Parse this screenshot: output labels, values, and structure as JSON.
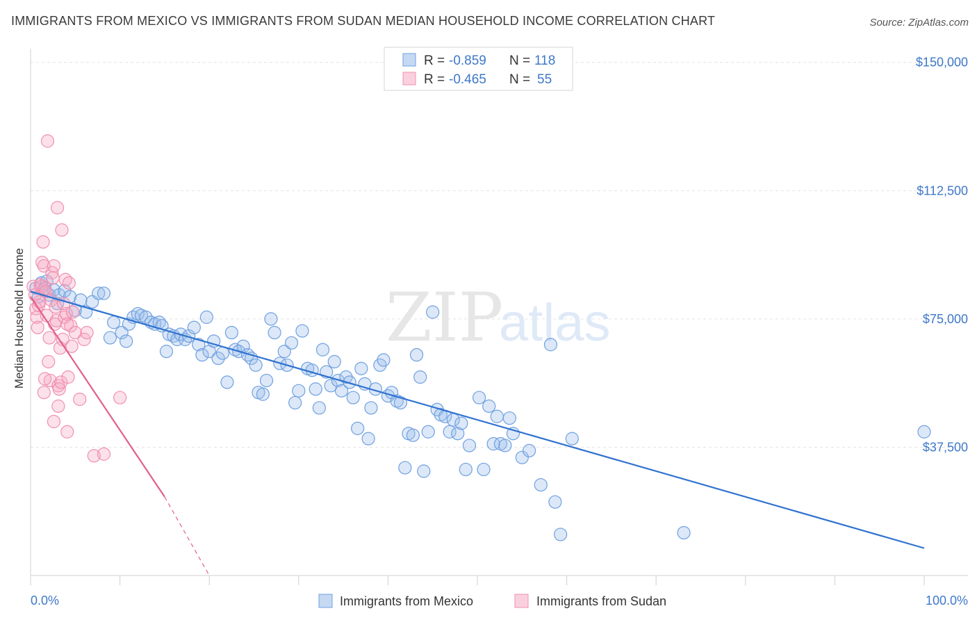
{
  "title": "IMMIGRANTS FROM MEXICO VS IMMIGRANTS FROM SUDAN MEDIAN HOUSEHOLD INCOME CORRELATION CHART",
  "source": "Source: ZipAtlas.com",
  "watermark": {
    "zip": "ZIP",
    "atlas": "atlas"
  },
  "colors": {
    "mexico": "#6fa0e0",
    "mexico_line": "#2f72d0",
    "sudan": "#f08fb0",
    "sudan_line": "#e0608a",
    "tick_label": "#3e78c9"
  },
  "legend": {
    "rows": [
      {
        "r_label": "R = ",
        "r_value": "-0.859",
        "n_label": "N = ",
        "n_value": "118"
      },
      {
        "r_label": "R = ",
        "r_value": "-0.465",
        "n_label": "N = ",
        "n_value": "55"
      }
    ]
  },
  "chart_data": {
    "type": "scatter",
    "title": "IMMIGRANTS FROM MEXICO VS IMMIGRANTS FROM SUDAN MEDIAN HOUSEHOLD INCOME CORRELATION CHART",
    "xlabel": "",
    "ylabel": "Median Household Income",
    "xlim": [
      0,
      100
    ],
    "ylim": [
      0,
      154000
    ],
    "x_tick_labels": [
      "0.0%",
      "100.0%"
    ],
    "y_ticks": [
      {
        "value": 37500,
        "label": "$37,500"
      },
      {
        "value": 75000,
        "label": "$75,000"
      },
      {
        "value": 112500,
        "label": "$112,500"
      },
      {
        "value": 150000,
        "label": "$150,000"
      }
    ],
    "grid": true,
    "legend_position": "top-center",
    "series": [
      {
        "name": "Immigrants from Mexico",
        "trend": {
          "x": [
            0,
            100
          ],
          "y": [
            83000,
            8000
          ]
        },
        "points": [
          [
            0.6,
            84000
          ],
          [
            0.9,
            81500
          ],
          [
            1.2,
            85500
          ],
          [
            1.5,
            83500
          ],
          [
            1.8,
            86000
          ],
          [
            2.1,
            82000
          ],
          [
            2.6,
            83500
          ],
          [
            3.2,
            82000
          ],
          [
            3.8,
            83200
          ],
          [
            4.4,
            81500
          ],
          [
            5.0,
            77500
          ],
          [
            5.6,
            80500
          ],
          [
            6.2,
            77000
          ],
          [
            6.9,
            80000
          ],
          [
            7.6,
            82500
          ],
          [
            8.2,
            82500
          ],
          [
            8.9,
            69500
          ],
          [
            9.3,
            74000
          ],
          [
            10.2,
            71000
          ],
          [
            10.7,
            68500
          ],
          [
            11.0,
            73500
          ],
          [
            11.5,
            75500
          ],
          [
            12.0,
            76500
          ],
          [
            12.4,
            76000
          ],
          [
            12.9,
            75500
          ],
          [
            13.5,
            74000
          ],
          [
            13.9,
            73500
          ],
          [
            14.4,
            74000
          ],
          [
            14.7,
            73000
          ],
          [
            15.2,
            65500
          ],
          [
            15.5,
            70500
          ],
          [
            16.0,
            70000
          ],
          [
            16.4,
            69000
          ],
          [
            16.8,
            70500
          ],
          [
            17.3,
            69000
          ],
          [
            17.7,
            70000
          ],
          [
            18.3,
            72500
          ],
          [
            18.8,
            67500
          ],
          [
            19.2,
            64500
          ],
          [
            19.7,
            75500
          ],
          [
            20.0,
            65500
          ],
          [
            20.5,
            68500
          ],
          [
            21.0,
            63500
          ],
          [
            21.5,
            65000
          ],
          [
            22.0,
            56500
          ],
          [
            22.5,
            71000
          ],
          [
            22.9,
            66000
          ],
          [
            23.3,
            65500
          ],
          [
            23.8,
            67000
          ],
          [
            24.3,
            64500
          ],
          [
            24.7,
            63500
          ],
          [
            25.2,
            61500
          ],
          [
            25.5,
            53500
          ],
          [
            26.0,
            53000
          ],
          [
            26.4,
            57000
          ],
          [
            26.9,
            75000
          ],
          [
            27.3,
            71000
          ],
          [
            27.9,
            62000
          ],
          [
            28.4,
            65500
          ],
          [
            28.7,
            61500
          ],
          [
            29.2,
            68000
          ],
          [
            29.6,
            50500
          ],
          [
            30.0,
            54000
          ],
          [
            30.4,
            71500
          ],
          [
            31.0,
            60500
          ],
          [
            31.5,
            60000
          ],
          [
            31.9,
            54500
          ],
          [
            32.3,
            49000
          ],
          [
            32.7,
            66000
          ],
          [
            33.1,
            59500
          ],
          [
            33.6,
            55500
          ],
          [
            34.0,
            62500
          ],
          [
            34.4,
            57000
          ],
          [
            34.8,
            54000
          ],
          [
            35.3,
            58000
          ],
          [
            35.7,
            56500
          ],
          [
            36.1,
            52000
          ],
          [
            36.6,
            43000
          ],
          [
            37.0,
            60500
          ],
          [
            37.4,
            56000
          ],
          [
            37.8,
            40000
          ],
          [
            38.1,
            49000
          ],
          [
            38.6,
            54500
          ],
          [
            39.1,
            61500
          ],
          [
            39.5,
            63000
          ],
          [
            40.0,
            52500
          ],
          [
            40.4,
            53500
          ],
          [
            41.0,
            51000
          ],
          [
            41.4,
            50500
          ],
          [
            41.9,
            31500
          ],
          [
            42.3,
            41500
          ],
          [
            42.8,
            41000
          ],
          [
            43.2,
            64500
          ],
          [
            43.6,
            58000
          ],
          [
            44.0,
            30500
          ],
          [
            44.5,
            42000
          ],
          [
            45.0,
            77000
          ],
          [
            45.5,
            48500
          ],
          [
            45.9,
            47000
          ],
          [
            46.4,
            46500
          ],
          [
            46.9,
            42000
          ],
          [
            47.3,
            45500
          ],
          [
            47.8,
            41500
          ],
          [
            48.2,
            44500
          ],
          [
            48.7,
            31000
          ],
          [
            49.1,
            38000
          ],
          [
            50.2,
            52000
          ],
          [
            50.7,
            31000
          ],
          [
            51.3,
            49500
          ],
          [
            51.8,
            38500
          ],
          [
            52.2,
            46500
          ],
          [
            52.6,
            38500
          ],
          [
            53.1,
            38000
          ],
          [
            53.6,
            46000
          ],
          [
            54.0,
            41500
          ],
          [
            55.0,
            34500
          ],
          [
            55.8,
            36500
          ],
          [
            57.1,
            26500
          ],
          [
            58.2,
            67500
          ],
          [
            58.7,
            21500
          ],
          [
            59.3,
            12000
          ],
          [
            60.6,
            40000
          ],
          [
            73.1,
            12500
          ],
          [
            100.0,
            42000
          ],
          [
            3.0,
            79500
          ]
        ]
      },
      {
        "name": "Immigrants from Sudan",
        "trend": {
          "x": [
            0,
            15
          ],
          "y": [
            81500,
            23000
          ]
        },
        "trend_extension": {
          "x": [
            15,
            20
          ],
          "y": [
            23000,
            0
          ]
        },
        "points": [
          [
            0.3,
            84500
          ],
          [
            0.5,
            82000
          ],
          [
            0.6,
            78000
          ],
          [
            0.7,
            75500
          ],
          [
            0.8,
            72500
          ],
          [
            0.9,
            79000
          ],
          [
            1.0,
            80000
          ],
          [
            1.1,
            85000
          ],
          [
            1.2,
            84500
          ],
          [
            1.3,
            91500
          ],
          [
            1.4,
            97500
          ],
          [
            1.5,
            90500
          ],
          [
            1.6,
            84000
          ],
          [
            1.7,
            83000
          ],
          [
            1.8,
            76000
          ],
          [
            1.9,
            127000
          ],
          [
            2.0,
            62500
          ],
          [
            2.1,
            69500
          ],
          [
            2.2,
            57000
          ],
          [
            2.3,
            80500
          ],
          [
            2.4,
            88500
          ],
          [
            2.5,
            87000
          ],
          [
            2.6,
            90500
          ],
          [
            2.7,
            73500
          ],
          [
            2.8,
            78500
          ],
          [
            2.9,
            74500
          ],
          [
            3.0,
            107500
          ],
          [
            3.1,
            55500
          ],
          [
            3.2,
            54500
          ],
          [
            3.3,
            66500
          ],
          [
            3.4,
            56500
          ],
          [
            3.5,
            101000
          ],
          [
            3.6,
            69000
          ],
          [
            3.7,
            79500
          ],
          [
            3.8,
            75500
          ],
          [
            3.9,
            86500
          ],
          [
            4.0,
            76500
          ],
          [
            4.1,
            73500
          ],
          [
            4.2,
            58000
          ],
          [
            4.3,
            85500
          ],
          [
            4.5,
            73000
          ],
          [
            4.6,
            67000
          ],
          [
            4.7,
            77000
          ],
          [
            1.5,
            53500
          ],
          [
            1.6,
            57500
          ],
          [
            2.6,
            45000
          ],
          [
            3.1,
            49500
          ],
          [
            4.1,
            42000
          ],
          [
            5.0,
            71000
          ],
          [
            5.5,
            51500
          ],
          [
            6.0,
            69000
          ],
          [
            6.3,
            71000
          ],
          [
            7.1,
            35000
          ],
          [
            8.2,
            35500
          ],
          [
            10.0,
            52000
          ]
        ]
      }
    ]
  },
  "bottom_legend": [
    {
      "label": "Immigrants from Mexico"
    },
    {
      "label": "Immigrants from Sudan"
    }
  ]
}
